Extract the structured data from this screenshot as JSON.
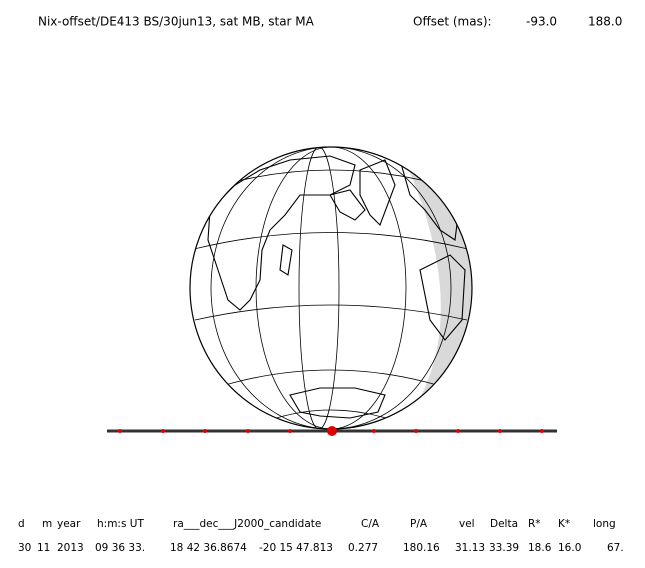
{
  "header": {
    "title": "Nix-offset/DE413 BS/30jun13, sat MB, star MA",
    "offset_label": "Offset (mas):",
    "offset_x": "-93.0",
    "offset_y": "188.0"
  },
  "table": {
    "columns": [
      "d",
      "m",
      "year",
      "h:m:s UT",
      "ra___dec___J2000_candidate",
      "C/A",
      "P/A",
      "vel",
      "Delta",
      "R*",
      "K*",
      "long"
    ],
    "row": [
      "30",
      "11",
      "2013",
      "09 36 33.",
      "18 42 36.8674",
      "-20 15 47.813",
      "0.277",
      "180.16",
      "31.13",
      "33.39",
      "18.6",
      "16.0",
      "67."
    ]
  }
}
